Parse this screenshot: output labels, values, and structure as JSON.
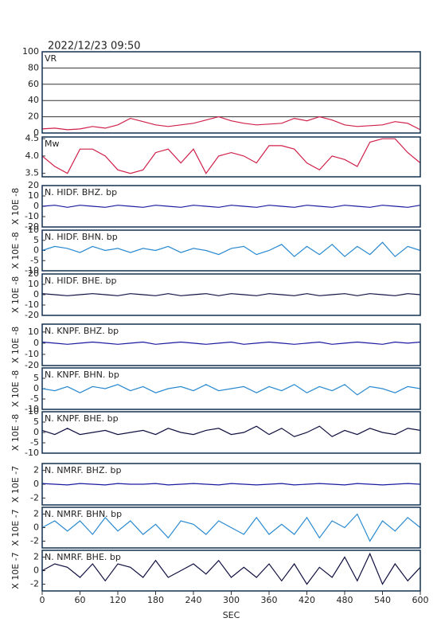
{
  "header": {
    "title": "2022/12/23  09:50"
  },
  "chart_data": [
    {
      "type": "line",
      "title": "VR",
      "color": "#d0204a",
      "ylim": [
        0,
        100
      ],
      "yticks": [
        0,
        20,
        40,
        60,
        80,
        100
      ],
      "grid": true,
      "xlim": [
        0,
        600
      ],
      "x": [
        0,
        20,
        40,
        60,
        80,
        100,
        120,
        140,
        160,
        180,
        200,
        220,
        240,
        260,
        280,
        300,
        320,
        340,
        360,
        380,
        400,
        420,
        440,
        460,
        480,
        500,
        520,
        540,
        560,
        580,
        600
      ],
      "values": [
        5,
        6,
        4,
        5,
        8,
        6,
        10,
        18,
        14,
        10,
        8,
        10,
        12,
        16,
        20,
        15,
        12,
        10,
        11,
        12,
        18,
        15,
        20,
        16,
        10,
        8,
        9,
        10,
        14,
        12,
        4
      ]
    },
    {
      "type": "line",
      "title": "Mw",
      "color": "#d0204a",
      "ylim": [
        3.4,
        4.55
      ],
      "yticks": [
        3.5,
        {
          "value": 4,
          "label": "4.0"
        },
        4.5
      ],
      "xlim": [
        0,
        600
      ],
      "x": [
        0,
        20,
        40,
        60,
        80,
        100,
        120,
        140,
        160,
        180,
        200,
        220,
        240,
        260,
        280,
        300,
        320,
        340,
        360,
        380,
        400,
        420,
        440,
        460,
        480,
        500,
        520,
        540,
        560,
        580,
        600
      ],
      "values": [
        4.0,
        3.7,
        3.5,
        4.2,
        4.2,
        4.0,
        3.6,
        3.5,
        3.6,
        4.1,
        4.2,
        3.8,
        4.2,
        3.5,
        4.0,
        4.1,
        4.0,
        3.8,
        4.3,
        4.3,
        4.2,
        3.8,
        3.6,
        4.0,
        3.9,
        3.7,
        4.4,
        4.5,
        4.5,
        4.1,
        3.8
      ]
    },
    {
      "type": "line",
      "title": "N. HIDF. BHZ. bp",
      "ylabel": "X 10E -8",
      "color": "#1a1aa0",
      "ylim": [
        -20,
        20
      ],
      "yticks": [
        -20,
        -10,
        0,
        10,
        20
      ],
      "xlim": [
        0,
        600
      ],
      "x": [
        0,
        20,
        40,
        60,
        80,
        100,
        120,
        140,
        160,
        180,
        200,
        220,
        240,
        260,
        280,
        300,
        320,
        340,
        360,
        380,
        400,
        420,
        440,
        460,
        480,
        500,
        520,
        540,
        560,
        580,
        600
      ],
      "values": [
        0,
        1,
        -1,
        1,
        0,
        -1,
        1,
        0,
        -1,
        1,
        0,
        -1,
        1,
        0,
        -1,
        1,
        0,
        -1,
        1,
        0,
        -1,
        1,
        0,
        -1,
        1,
        0,
        -1,
        1,
        0,
        -1,
        1
      ]
    },
    {
      "type": "line",
      "title": "N. HIDF. BHN. bp",
      "ylabel": "X 10E -8",
      "color": "#2a8ad0",
      "ylim": [
        -10,
        10
      ],
      "yticks": [
        -10,
        -5,
        0,
        5,
        10
      ],
      "xlim": [
        0,
        600
      ],
      "x": [
        0,
        20,
        40,
        60,
        80,
        100,
        120,
        140,
        160,
        180,
        200,
        220,
        240,
        260,
        280,
        300,
        320,
        340,
        360,
        380,
        400,
        420,
        440,
        460,
        480,
        500,
        520,
        540,
        560,
        580,
        600
      ],
      "values": [
        0,
        2,
        1,
        -1,
        2,
        0,
        1,
        -1,
        1,
        0,
        2,
        -1,
        1,
        0,
        -2,
        1,
        2,
        -2,
        0,
        3,
        -3,
        2,
        -2,
        3,
        -3,
        2,
        -2,
        4,
        -3,
        2,
        0
      ]
    },
    {
      "type": "line",
      "title": "N. HIDF. BHE. bp",
      "ylabel": "X 10E -8",
      "color": "#101040",
      "ylim": [
        -20,
        20
      ],
      "yticks": [
        -20,
        -10,
        0,
        10,
        20
      ],
      "xlim": [
        0,
        600
      ],
      "x": [
        0,
        20,
        40,
        60,
        80,
        100,
        120,
        140,
        160,
        180,
        200,
        220,
        240,
        260,
        280,
        300,
        320,
        340,
        360,
        380,
        400,
        420,
        440,
        460,
        480,
        500,
        520,
        540,
        560,
        580,
        600
      ],
      "values": [
        1,
        0,
        -1,
        0,
        1,
        0,
        -1,
        1,
        0,
        -1,
        1,
        -1,
        0,
        1,
        -1,
        1,
        0,
        -1,
        1,
        0,
        -1,
        1,
        -1,
        0,
        1,
        -1,
        1,
        0,
        -1,
        1,
        0
      ]
    },
    {
      "type": "line",
      "title": "N. KNPF. BHZ. bp",
      "ylabel": "X 10E -8",
      "color": "#1a1aa0",
      "ylim": [
        -20,
        17
      ],
      "yticks": [
        -20,
        -10,
        0,
        10
      ],
      "xlim": [
        0,
        600
      ],
      "x": [
        0,
        20,
        40,
        60,
        80,
        100,
        120,
        140,
        160,
        180,
        200,
        220,
        240,
        260,
        280,
        300,
        320,
        340,
        360,
        380,
        400,
        420,
        440,
        460,
        480,
        500,
        520,
        540,
        560,
        580,
        600
      ],
      "values": [
        1,
        0,
        -1,
        0,
        1,
        0,
        -1,
        0,
        1,
        -1,
        0,
        1,
        0,
        -1,
        0,
        1,
        -1,
        0,
        1,
        0,
        -1,
        0,
        1,
        -1,
        0,
        1,
        0,
        -1,
        1,
        0,
        1
      ]
    },
    {
      "type": "line",
      "title": "N. KNPF. BHN. bp",
      "ylabel": "X 10E -8",
      "color": "#2a8ad0",
      "ylim": [
        -10,
        10
      ],
      "yticks": [
        -10,
        -5,
        0,
        5
      ],
      "xlim": [
        0,
        600
      ],
      "x": [
        0,
        20,
        40,
        60,
        80,
        100,
        120,
        140,
        160,
        180,
        200,
        220,
        240,
        260,
        280,
        300,
        320,
        340,
        360,
        380,
        400,
        420,
        440,
        460,
        480,
        500,
        520,
        540,
        560,
        580,
        600
      ],
      "values": [
        0,
        -1,
        1,
        -2,
        1,
        0,
        2,
        -1,
        1,
        -2,
        0,
        1,
        -1,
        2,
        -1,
        0,
        1,
        -2,
        1,
        -1,
        2,
        -2,
        1,
        -1,
        2,
        -3,
        1,
        0,
        -2,
        1,
        0
      ]
    },
    {
      "type": "line",
      "title": "N. KNPF. BHE. bp",
      "ylabel": "X 10E -8",
      "color": "#101040",
      "ylim": [
        -10,
        10
      ],
      "yticks": [
        -10,
        -5,
        0,
        5,
        10
      ],
      "xlim": [
        0,
        600
      ],
      "x": [
        0,
        20,
        40,
        60,
        80,
        100,
        120,
        140,
        160,
        180,
        200,
        220,
        240,
        260,
        280,
        300,
        320,
        340,
        360,
        380,
        400,
        420,
        440,
        460,
        480,
        500,
        520,
        540,
        560,
        580,
        600
      ],
      "values": [
        1,
        -1,
        2,
        -1,
        0,
        1,
        -1,
        0,
        1,
        -1,
        2,
        0,
        -1,
        1,
        2,
        -1,
        0,
        3,
        -1,
        2,
        -2,
        0,
        3,
        -2,
        1,
        -1,
        2,
        0,
        -1,
        2,
        1
      ]
    },
    {
      "type": "line",
      "title": "N. NMRF. BHZ. bp",
      "ylabel": "X 10E -7",
      "color": "#1a1aa0",
      "ylim": [
        -3,
        3
      ],
      "yticks": [
        -2,
        0,
        2
      ],
      "xlim": [
        0,
        600
      ],
      "x": [
        0,
        20,
        40,
        60,
        80,
        100,
        120,
        140,
        160,
        180,
        200,
        220,
        240,
        260,
        280,
        300,
        320,
        340,
        360,
        380,
        400,
        420,
        440,
        460,
        480,
        500,
        520,
        540,
        560,
        580,
        600
      ],
      "values": [
        0.1,
        0,
        -0.1,
        0.1,
        0,
        -0.1,
        0.1,
        0,
        0,
        0.1,
        -0.1,
        0,
        0.1,
        0,
        -0.1,
        0.1,
        0,
        -0.1,
        0,
        0.1,
        -0.1,
        0,
        0.1,
        0,
        -0.1,
        0.1,
        0,
        -0.1,
        0,
        0.1,
        0
      ]
    },
    {
      "type": "line",
      "title": "N. NMRF. BHN. bp",
      "ylabel": "X 10E -7",
      "color": "#2a8ad0",
      "ylim": [
        -3,
        3
      ],
      "yticks": [
        -2,
        0,
        2
      ],
      "xlim": [
        0,
        600
      ],
      "x": [
        0,
        20,
        40,
        60,
        80,
        100,
        120,
        140,
        160,
        180,
        200,
        220,
        240,
        260,
        280,
        300,
        320,
        340,
        360,
        380,
        400,
        420,
        440,
        460,
        480,
        500,
        520,
        540,
        560,
        580,
        600
      ],
      "values": [
        0,
        1,
        -0.5,
        1,
        -1,
        1.5,
        -0.5,
        1,
        -1,
        0.5,
        -1.5,
        1,
        0.5,
        -1,
        1,
        0,
        -1,
        1.5,
        -1,
        0.5,
        -1,
        1.5,
        -1.5,
        1,
        0,
        2,
        -2,
        1,
        -0.5,
        1.5,
        0
      ]
    },
    {
      "type": "line",
      "title": "N. NMRF. BHE. bp",
      "ylabel": "X 10E -7",
      "xlabel": "SEC",
      "color": "#101040",
      "ylim": [
        -3,
        3
      ],
      "yticks": [
        -2,
        0,
        2
      ],
      "xlim": [
        0,
        600
      ],
      "xticks": [
        0,
        60,
        120,
        180,
        240,
        300,
        360,
        420,
        480,
        540,
        600
      ],
      "x": [
        0,
        20,
        40,
        60,
        80,
        100,
        120,
        140,
        160,
        180,
        200,
        220,
        240,
        260,
        280,
        300,
        320,
        340,
        360,
        380,
        400,
        420,
        440,
        460,
        480,
        500,
        520,
        540,
        560,
        580,
        600
      ],
      "values": [
        0,
        1,
        0.5,
        -1,
        1,
        -1.5,
        1,
        0.5,
        -1,
        1.5,
        -1,
        0,
        1,
        -0.5,
        1.5,
        -1,
        0.5,
        -1,
        1,
        -1.5,
        1,
        -2,
        0.5,
        -1,
        2,
        -1.5,
        2.5,
        -2,
        1,
        -1.5,
        0.5
      ]
    }
  ]
}
